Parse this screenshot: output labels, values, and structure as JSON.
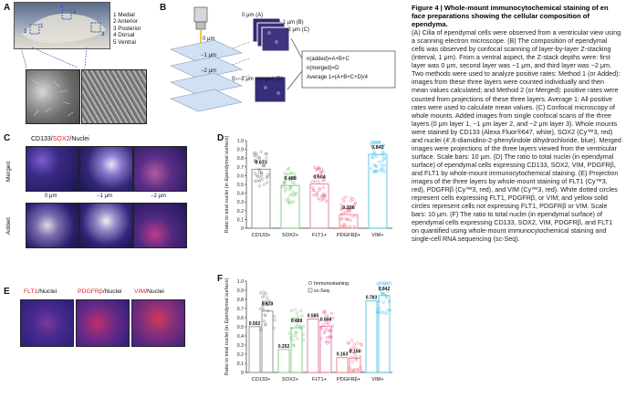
{
  "panelA": {
    "label": "A",
    "legend": [
      "1 Medial",
      "2 Anterior",
      "3 Posterior",
      "4 Dorsal",
      "5 Ventral"
    ],
    "num_markers": [
      "1",
      "2",
      "3",
      "4",
      "5"
    ]
  },
  "panelB": {
    "label": "B",
    "stack_labels": [
      "0 μm",
      "−1 μm",
      "−2 μm"
    ],
    "img_labels": [
      "0 μm (A)",
      "−1 μm (B)",
      "−2 μm (C)",
      "0~−2 μm merged (D)"
    ],
    "formulas": [
      "n(added)=A+B+C",
      "n(merged)=D",
      "Average 1=(A+B+C+D)/4"
    ]
  },
  "panelC": {
    "label": "C",
    "markers": {
      "cd133": "CD133/",
      "sox2": "SOX2",
      "nuclei": "/Nuclei"
    },
    "row_labels": [
      "Merged",
      "Added"
    ],
    "depths": [
      "0 μm",
      "−1 μm",
      "−2 μm"
    ]
  },
  "panelE": {
    "label": "E",
    "titles": [
      {
        "marker": "FLT1",
        "rest": "/Nuclei"
      },
      {
        "marker": "PDGFRβ",
        "rest": "/Nuclei"
      },
      {
        "marker": "VIM",
        "rest": "/Nuclei"
      }
    ]
  },
  "chartD": {
    "label": "D",
    "chart_data": {
      "type": "bar",
      "ylabel": "Ratio to total nuclei (in Ependymal surface)",
      "ylim": [
        0,
        1.0
      ],
      "yticks": [
        "0",
        "0.1",
        "0.2",
        "0.3",
        "0.4",
        "0.5",
        "0.6",
        "0.7",
        "0.8",
        "0.9",
        "1.0"
      ],
      "categories": [
        "CD133+",
        "SOX2+",
        "FLT1+",
        "PDGFRβ+",
        "VIM+"
      ],
      "values": [
        0.673,
        0.488,
        0.504,
        0.156,
        0.842
      ],
      "value_labels": [
        "0.673",
        "0.488",
        "0.504",
        "0.156",
        "0.842"
      ],
      "colors": [
        "#8a8a8a",
        "#7fc97f",
        "#e36fa3",
        "#ef7d8c",
        "#4fc3e8"
      ]
    }
  },
  "chartF": {
    "label": "F",
    "chart_data": {
      "type": "bar",
      "ylabel": "Ratio to total nuclei (in Ependymal surface)",
      "ylim": [
        0,
        1.0
      ],
      "yticks": [
        "0",
        "0.1",
        "0.2",
        "0.3",
        "0.4",
        "0.5",
        "0.6",
        "0.7",
        "0.8",
        "0.9",
        "1.0"
      ],
      "categories": [
        "CD133+",
        "SOX2+",
        "FLT1+",
        "PDGFRβ+",
        "VIM+"
      ],
      "legend": [
        "Immunostaining",
        "sc-Seq"
      ],
      "series": [
        {
          "name": "sc-Seq",
          "values": [
            0.502,
            0.252,
            0.585,
            0.163,
            0.783
          ],
          "labels": [
            "0.502",
            "0.252",
            "0.585",
            "0.163",
            "0.783"
          ]
        },
        {
          "name": "Immunostaining",
          "values": [
            0.673,
            0.488,
            0.504,
            0.156,
            0.842
          ],
          "labels": [
            "0.673",
            "0.488",
            "0.504",
            "0.156",
            "0.842"
          ]
        }
      ],
      "colors": [
        "#8a8a8a",
        "#7fc97f",
        "#e36fa3",
        "#ef7d8c",
        "#4fc3e8"
      ]
    }
  },
  "caption": {
    "title": "Figure 4 | Whole-mount immunocytochemical staining of en face preparations showing the cellular composition of ependyma.",
    "body": "(A) Cilia of ependymal cells were observed from a ventricular view using a scanning electron microscope. (B) The composition of ependymal cells was observed by confocal scanning of layer-by-layer Z-stacking (interval, 1 μm). From a ventral aspect, the Z-stack depths were: first layer was 0 μm, second layer was −1 μm, and third layer was −2 μm. Two methods were used to analyze positive rates: Method 1 (or Added): images from these three layers were counted individually and then mean values calculated; and Method 2 (or Merged): positive rates were counted from projections of these three layers. Average 1: All positive rates were used to calculate mean values. (C) Confocal microscopy of whole mounts. Added images from single confocal scans of the three layers (0 μm layer 1, −1 μm layer 2, and −2 μm layer 3). Whole mounts were stained by CD133 (Alexa Fluor®647, white), SOX2 (Cy™3, red) and nuclei (4′,6-diamidino-2-phenylindole dihydrochloride, blue). Merged images were projections of the three layers viewed from the ventricular surface. Scale bars: 10 μm. (D) The ratio to total nuclei (in ependymal surface) of ependymal cells expressing CD133, SOX2, VIM, PDGFRβ, and FLT1 by whole-mount immunocytochemical staining. (E) Projection images of the three layers by whole-mount staining of FLT1 (Cy™3, red), PDGFRβ (Cy™3, red), and VIM (Cy™3, red). White dotted circles represent cells expressing FLT1, PDGFRβ, or VIM; and yellow solid circles represent cells not expressing FLT1, PDGFRβ or VIM. Scale bars: 10 μm. (F) The ratio to total nuclei (in ependymal surface) of ependymal cells expressing CD133, SOX2, VIM, PDGFRβ, and FLT1 on quantified using whole-mount immunocytochemical staining and single-cell RNA sequencing (sc-Seq)."
  }
}
